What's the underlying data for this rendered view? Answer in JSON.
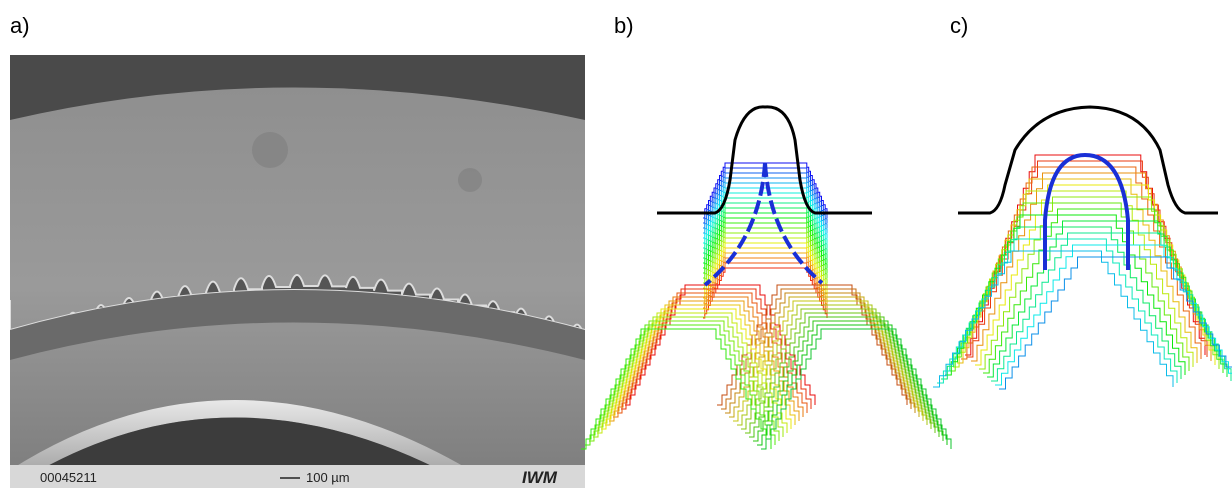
{
  "panels": [
    {
      "label": "a)",
      "info_bar": {
        "id": "00045211",
        "scale": "100 µm",
        "logo": "IWM"
      }
    },
    {
      "label": "b)"
    },
    {
      "label": "c)"
    }
  ]
}
